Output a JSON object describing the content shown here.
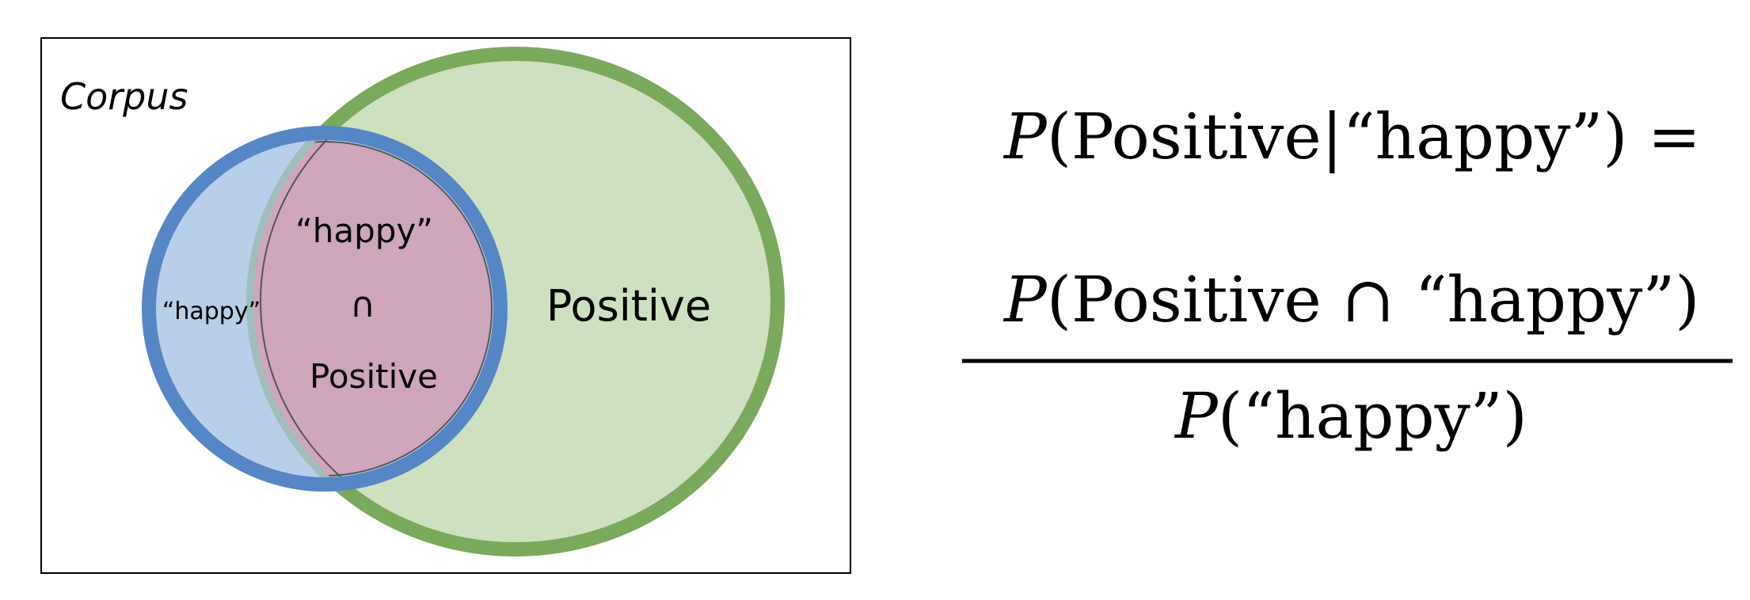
{
  "venn": {
    "corpus_label": "Corpus",
    "happy_only_label": "“happy”",
    "intersection_top": "“happy”",
    "intersection_symbol": "∩",
    "intersection_bottom": "Positive",
    "positive_label": "Positive"
  },
  "formula": {
    "line1_P": "P",
    "line1_rest": "(Positive|“happy”) =",
    "numerator_P": "P",
    "numerator_rest": "(Positive ∩ “happy”)",
    "denominator_P": "P",
    "denominator_rest": "(“happy”)"
  },
  "colors": {
    "happy_circle_fill": "#b7cfe8",
    "happy_circle_stroke": "#5586c6",
    "positive_circle_fill": "#cde0bf",
    "positive_circle_stroke": "#79a95a",
    "intersection_fill": "#cfa6bc",
    "overlap_band": "#9fbdbb",
    "corpus_border": "#000000"
  }
}
